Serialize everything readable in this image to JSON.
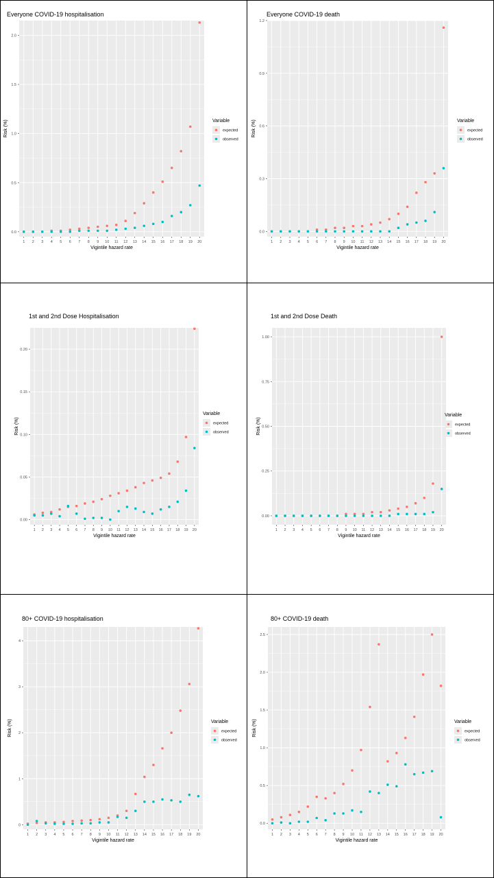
{
  "colors": {
    "expected": "#F8766D",
    "observed": "#00BFC4",
    "panel": "#EBEBEB",
    "grid": "#FFFFFF"
  },
  "legend": {
    "title": "Variable",
    "items": [
      "expected",
      "observed"
    ]
  },
  "chart_data": [
    {
      "type": "scatter",
      "title": "Everyone COVID-19 hospitalisation",
      "xlabel": "Vigintile hazard rate",
      "ylabel": "Risk (%)",
      "x": [
        1,
        2,
        3,
        4,
        5,
        6,
        7,
        8,
        9,
        10,
        11,
        12,
        13,
        14,
        15,
        16,
        17,
        18,
        19,
        20
      ],
      "ylim": [
        -0.05,
        2.15
      ],
      "yticks": [
        0.0,
        0.5,
        1.0,
        1.5,
        2.0
      ],
      "ytick_labels": [
        "0.0",
        "0.5",
        "1.0",
        "1.5",
        "2.0"
      ],
      "grid": true,
      "legend_position": "right",
      "series": [
        {
          "name": "expected",
          "values": [
            0.0,
            0.0,
            0.0,
            0.01,
            0.01,
            0.02,
            0.03,
            0.04,
            0.05,
            0.06,
            0.07,
            0.11,
            0.19,
            0.29,
            0.4,
            0.51,
            0.65,
            0.82,
            1.07,
            2.13
          ]
        },
        {
          "name": "observed",
          "values": [
            0.0,
            0.0,
            0.0,
            0.0,
            0.0,
            0.0,
            0.01,
            0.01,
            0.01,
            0.01,
            0.02,
            0.03,
            0.04,
            0.06,
            0.08,
            0.1,
            0.16,
            0.2,
            0.27,
            0.47
          ]
        }
      ]
    },
    {
      "type": "scatter",
      "title": "Everyone COVID-19 death",
      "xlabel": "Vigintile hazard rate",
      "ylabel": "Risk (%)",
      "x": [
        1,
        2,
        3,
        4,
        5,
        6,
        7,
        8,
        9,
        10,
        11,
        12,
        13,
        14,
        15,
        16,
        17,
        18,
        19,
        20
      ],
      "ylim": [
        -0.03,
        1.2
      ],
      "yticks": [
        0.0,
        0.3,
        0.6,
        0.9,
        1.2
      ],
      "ytick_labels": [
        "0.0",
        "0.3",
        "0.6",
        "0.9",
        "1.2"
      ],
      "grid": true,
      "legend_position": "right",
      "series": [
        {
          "name": "expected",
          "values": [
            0.0,
            0.0,
            0.0,
            0.0,
            0.0,
            0.01,
            0.01,
            0.02,
            0.02,
            0.03,
            0.03,
            0.04,
            0.05,
            0.07,
            0.1,
            0.14,
            0.22,
            0.28,
            0.33,
            1.16
          ]
        },
        {
          "name": "observed",
          "values": [
            0.0,
            0.0,
            0.0,
            0.0,
            0.0,
            0.0,
            0.0,
            0.0,
            0.0,
            0.0,
            0.0,
            0.0,
            0.0,
            0.0,
            0.02,
            0.04,
            0.05,
            0.06,
            0.11,
            0.36
          ]
        }
      ]
    },
    {
      "type": "scatter",
      "title": "1st and 2nd Dose Hospitalisation",
      "xlabel": "Vigintile hazard rate",
      "ylabel": "Risk (%)",
      "x": [
        1,
        2,
        3,
        4,
        5,
        6,
        7,
        8,
        9,
        10,
        11,
        12,
        13,
        14,
        15,
        16,
        17,
        18,
        19,
        20
      ],
      "ylim": [
        -0.006,
        0.225
      ],
      "yticks": [
        0.0,
        0.05,
        0.1,
        0.15,
        0.2
      ],
      "ytick_labels": [
        "0.00",
        "0.05",
        "0.10",
        "0.15",
        "0.20"
      ],
      "grid": true,
      "legend_position": "right",
      "series": [
        {
          "name": "expected",
          "values": [
            0.006,
            0.008,
            0.009,
            0.012,
            0.015,
            0.016,
            0.019,
            0.021,
            0.024,
            0.028,
            0.031,
            0.034,
            0.038,
            0.043,
            0.046,
            0.049,
            0.054,
            0.068,
            0.097,
            0.224
          ]
        },
        {
          "name": "observed",
          "values": [
            0.005,
            0.005,
            0.007,
            0.004,
            0.016,
            0.007,
            0.001,
            0.002,
            0.002,
            0.0,
            0.01,
            0.015,
            0.013,
            0.009,
            0.007,
            0.012,
            0.015,
            0.021,
            0.034,
            0.084
          ]
        }
      ]
    },
    {
      "type": "scatter",
      "title": "1st and 2nd Dose Death",
      "xlabel": "Vigintile hazard rate",
      "ylabel": "Risk (%)",
      "x": [
        1,
        2,
        3,
        4,
        5,
        6,
        7,
        8,
        9,
        10,
        11,
        12,
        13,
        14,
        15,
        16,
        17,
        18,
        19,
        20
      ],
      "ylim": [
        -0.05,
        1.05
      ],
      "yticks": [
        0.0,
        0.25,
        0.5,
        0.75,
        1.0
      ],
      "ytick_labels": [
        "0.00",
        "0.25",
        "0.50",
        "0.75",
        "1.00"
      ],
      "grid": true,
      "legend_position": "right",
      "series": [
        {
          "name": "expected",
          "values": [
            0.0,
            0.0,
            0.0,
            0.0,
            0.0,
            0.0,
            0.0,
            0.0,
            0.01,
            0.01,
            0.01,
            0.02,
            0.02,
            0.03,
            0.04,
            0.05,
            0.07,
            0.1,
            0.18,
            1.0
          ]
        },
        {
          "name": "observed",
          "values": [
            0.0,
            0.0,
            0.0,
            0.0,
            0.0,
            0.0,
            0.0,
            0.0,
            0.0,
            0.0,
            0.0,
            0.0,
            0.0,
            0.0,
            0.01,
            0.01,
            0.01,
            0.01,
            0.02,
            0.15
          ]
        }
      ]
    },
    {
      "type": "scatter",
      "title": "80+ COVID-19 hospitalisation",
      "xlabel": "Vigintile hazard rate",
      "ylabel": "Risk (%)",
      "x": [
        1,
        2,
        3,
        4,
        5,
        6,
        7,
        8,
        9,
        10,
        11,
        12,
        13,
        14,
        15,
        16,
        17,
        18,
        19,
        20
      ],
      "ylim": [
        -0.1,
        4.3
      ],
      "yticks": [
        0,
        1,
        2,
        3,
        4
      ],
      "ytick_labels": [
        "0",
        "1",
        "2",
        "3",
        "4"
      ],
      "grid": true,
      "legend_position": "right",
      "series": [
        {
          "name": "expected",
          "values": [
            0.02,
            0.04,
            0.05,
            0.05,
            0.06,
            0.08,
            0.09,
            0.1,
            0.12,
            0.15,
            0.2,
            0.3,
            0.67,
            1.04,
            1.3,
            1.66,
            2.0,
            2.48,
            3.06,
            4.27
          ]
        },
        {
          "name": "observed",
          "values": [
            0.0,
            0.08,
            0.03,
            0.02,
            0.02,
            0.02,
            0.03,
            0.03,
            0.05,
            0.05,
            0.17,
            0.15,
            0.3,
            0.5,
            0.5,
            0.55,
            0.53,
            0.5,
            0.65,
            0.62
          ]
        }
      ]
    },
    {
      "type": "scatter",
      "title": "80+ COVID-19 death",
      "xlabel": "Vigintile hazard rate",
      "ylabel": "Risk (%)",
      "x": [
        1,
        2,
        3,
        4,
        5,
        6,
        7,
        8,
        9,
        10,
        11,
        12,
        13,
        14,
        15,
        16,
        17,
        18,
        19,
        20
      ],
      "ylim": [
        -0.08,
        2.6
      ],
      "yticks": [
        0.0,
        0.5,
        1.0,
        1.5,
        2.0,
        2.5
      ],
      "ytick_labels": [
        "0.0",
        "0.5",
        "1.0",
        "1.5",
        "2.0",
        "2.5"
      ],
      "grid": true,
      "legend_position": "right",
      "series": [
        {
          "name": "expected",
          "values": [
            0.05,
            0.08,
            0.11,
            0.15,
            0.22,
            0.35,
            0.33,
            0.4,
            0.52,
            0.7,
            0.97,
            1.54,
            2.37,
            0.82,
            0.93,
            1.13,
            1.41,
            1.97,
            2.5,
            1.82
          ]
        },
        {
          "name": "observed",
          "values": [
            0.0,
            0.01,
            0.0,
            0.02,
            0.02,
            0.07,
            0.04,
            0.13,
            0.13,
            0.17,
            0.15,
            0.42,
            0.4,
            0.51,
            0.49,
            0.78,
            0.65,
            0.67,
            0.69,
            0.08
          ]
        }
      ]
    }
  ]
}
